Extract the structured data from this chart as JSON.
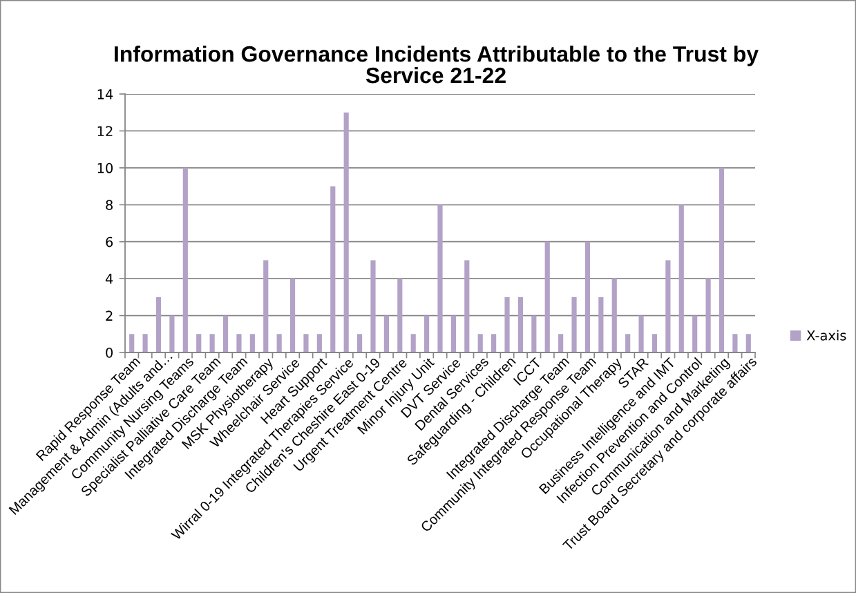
{
  "chart_data": {
    "type": "bar",
    "title": "Information Governance Incidents Attributable to the Trust by\nService 21-22",
    "categories": [
      "Rapid Response Team",
      null,
      "Management & Admin (Adults and…",
      null,
      "Community Nursing Teams",
      null,
      "Specialist Palliative Care Team",
      null,
      "Integrated Discharge Team",
      null,
      "MSK Physiotherapy",
      null,
      "Wheelchair Service",
      null,
      "Heart Support",
      null,
      "Wirral 0-19 Integrated Therapies Service",
      null,
      "Children's Cheshire East 0-19",
      null,
      "Urgent Treatment Centre",
      null,
      "Minor Injury Unit",
      null,
      "DVT Service",
      null,
      "Dental Services",
      null,
      "Safeguarding - Children",
      null,
      "ICCT",
      null,
      "Integrated Discharge Team",
      null,
      "Community Integrated Response Team",
      null,
      "Occupational Therapy",
      null,
      "STAR",
      null,
      "Business Intelligence and IMT",
      null,
      "Infection Prevention and Control",
      null,
      "Communication and Marketing",
      null,
      "Trust Board Secretary and corporate affairs"
    ],
    "series": [
      {
        "name": "X-axis",
        "color": "#b3a2c7",
        "values": [
          1,
          1,
          3,
          2,
          10,
          1,
          1,
          2,
          1,
          1,
          5,
          1,
          4,
          1,
          1,
          9,
          13,
          1,
          5,
          2,
          4,
          1,
          2,
          8,
          2,
          5,
          1,
          1,
          3,
          3,
          2,
          6,
          1,
          3,
          6,
          3,
          4,
          1,
          2,
          1,
          5,
          8,
          2,
          4,
          10,
          1,
          1
        ]
      }
    ],
    "ylim": [
      0,
      14
    ],
    "yticks": [
      0,
      2,
      4,
      6,
      8,
      10,
      12,
      14
    ],
    "grid": "y",
    "legend": "right"
  }
}
